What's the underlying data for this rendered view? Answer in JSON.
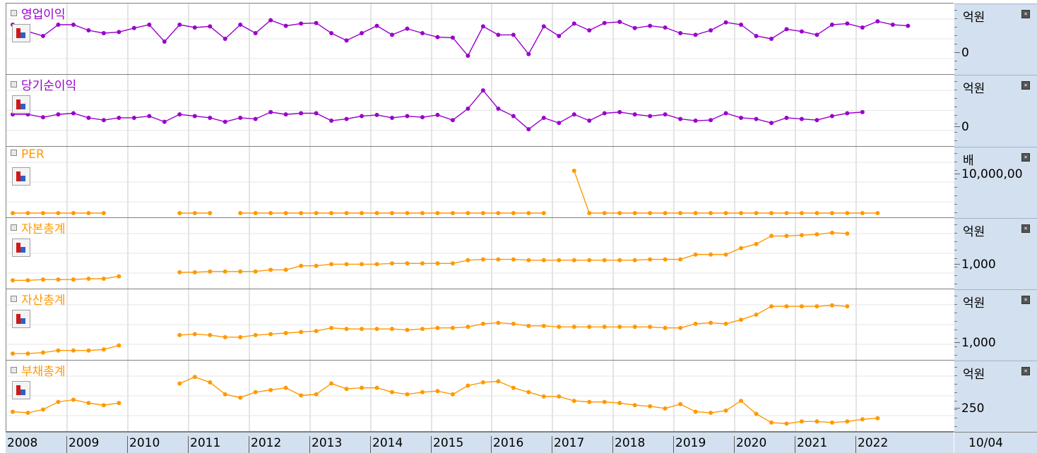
{
  "x_axis_labels": [
    "2008",
    "2009",
    "2010",
    "2011",
    "2012",
    "2013",
    "2014",
    "2015",
    "2016",
    "2017",
    "2018",
    "2019",
    "2020",
    "2021",
    "2022"
  ],
  "corner_label": "10/04",
  "colors": {
    "purple": "#9900cc",
    "orange": "#ff9900",
    "grid": "#c8c8c8",
    "axis_bg": "#d3e0ef"
  },
  "panels": [
    {
      "title": "영업이익",
      "unit": "억원",
      "ytick": "0",
      "color": "#9900cc"
    },
    {
      "title": "당기순이익",
      "unit": "억원",
      "ytick": "0",
      "color": "#9900cc"
    },
    {
      "title": "PER",
      "unit": "배",
      "ytick": "10,000,00",
      "color": "#ff9900"
    },
    {
      "title": "자본총계",
      "unit": "억원",
      "ytick": "1,000",
      "color": "#ff9900"
    },
    {
      "title": "자산총계",
      "unit": "억원",
      "ytick": "1,000",
      "color": "#ff9900"
    },
    {
      "title": "부채총계",
      "unit": "억원",
      "ytick": "250",
      "color": "#ff9900"
    }
  ],
  "chart_data": [
    {
      "type": "line",
      "title": "영업이익",
      "x_start": "2008 Q1",
      "frequency": "quarterly",
      "ylabel": "억원",
      "series": [
        {
          "name": "영업이익",
          "values": [
            60,
            48,
            40,
            60,
            60,
            50,
            45,
            47,
            54,
            60,
            30,
            60,
            55,
            57,
            35,
            60,
            45,
            68,
            58,
            62,
            63,
            45,
            32,
            45,
            58,
            42,
            53,
            45,
            38,
            37,
            5,
            57,
            42,
            42,
            8,
            57,
            40,
            62,
            50,
            63,
            65,
            54,
            58,
            55,
            45,
            42,
            50,
            64,
            60,
            40,
            35,
            52,
            48,
            42,
            60,
            62,
            55,
            66,
            60,
            58
          ]
        }
      ],
      "ylim": [
        -20,
        80
      ],
      "yticks": [
        0
      ]
    },
    {
      "type": "line",
      "title": "당기순이익",
      "x_start": "2008 Q1",
      "frequency": "quarterly",
      "ylabel": "억원",
      "series": [
        {
          "name": "당기순이익",
          "values": [
            28,
            28,
            23,
            28,
            30,
            22,
            18,
            22,
            22,
            25,
            15,
            28,
            25,
            22,
            15,
            22,
            20,
            32,
            28,
            30,
            30,
            17,
            20,
            25,
            27,
            22,
            25,
            23,
            27,
            18,
            38,
            70,
            38,
            25,
            2,
            22,
            13,
            28,
            17,
            30,
            32,
            28,
            25,
            28,
            20,
            17,
            18,
            30,
            22,
            20,
            13,
            22,
            20,
            18,
            25,
            30,
            32
          ]
        }
      ],
      "ylim": [
        -20,
        80
      ],
      "yticks": [
        0
      ]
    },
    {
      "type": "line",
      "title": "PER",
      "x_start": "2008 Q1",
      "frequency": "quarterly",
      "ylabel": "배",
      "series": [
        {
          "name": "PER",
          "values": [
            0,
            0,
            0,
            0,
            0,
            0,
            0,
            null,
            null,
            null,
            null,
            0,
            0,
            0,
            null,
            0,
            0,
            0,
            0,
            0,
            0,
            0,
            0,
            0,
            0,
            0,
            0,
            0,
            0,
            0,
            0,
            0,
            0,
            0,
            0,
            0,
            null,
            15000,
            0,
            0,
            0,
            0,
            0,
            0,
            0,
            0,
            0,
            0,
            0,
            0,
            0,
            0,
            0,
            0,
            0,
            0,
            0,
            0
          ]
        }
      ],
      "ylim": [
        0,
        20000
      ],
      "yticks": [
        10000
      ]
    },
    {
      "type": "line",
      "title": "자본총계",
      "x_start": "2008 Q1",
      "frequency": "quarterly",
      "ylabel": "억원",
      "series": [
        {
          "name": "자본총계",
          "values": [
            200,
            200,
            210,
            210,
            210,
            220,
            220,
            250,
            null,
            null,
            null,
            300,
            300,
            310,
            310,
            310,
            310,
            330,
            330,
            380,
            380,
            400,
            400,
            400,
            400,
            410,
            410,
            410,
            410,
            410,
            450,
            460,
            460,
            460,
            450,
            450,
            450,
            450,
            450,
            450,
            450,
            450,
            460,
            460,
            460,
            520,
            520,
            520,
            600,
            650,
            750,
            750,
            760,
            770,
            790,
            780
          ]
        }
      ],
      "ylim": [
        150,
        850
      ],
      "yticks": [
        1000
      ]
    },
    {
      "type": "line",
      "title": "자산총계",
      "x_start": "2008 Q1",
      "frequency": "quarterly",
      "ylabel": "억원",
      "series": [
        {
          "name": "자산총계",
          "values": [
            320,
            320,
            330,
            350,
            350,
            350,
            360,
            400,
            null,
            null,
            null,
            500,
            510,
            500,
            480,
            480,
            500,
            510,
            520,
            530,
            540,
            570,
            560,
            560,
            560,
            560,
            550,
            560,
            570,
            570,
            580,
            610,
            620,
            610,
            590,
            590,
            580,
            580,
            580,
            580,
            580,
            580,
            580,
            570,
            570,
            610,
            620,
            610,
            650,
            700,
            780,
            780,
            780,
            780,
            790,
            780
          ]
        }
      ],
      "ylim": [
        300,
        850
      ],
      "yticks": [
        1000
      ]
    },
    {
      "type": "line",
      "title": "부채총계",
      "x_start": "2008 Q1",
      "frequency": "quarterly",
      "ylabel": "억원",
      "series": [
        {
          "name": "부채총계",
          "values": [
            330,
            325,
            340,
            375,
            385,
            370,
            360,
            370,
            null,
            null,
            null,
            460,
            490,
            465,
            410,
            395,
            420,
            430,
            440,
            405,
            410,
            460,
            435,
            440,
            440,
            420,
            410,
            420,
            425,
            410,
            450,
            465,
            470,
            440,
            420,
            400,
            400,
            380,
            375,
            375,
            370,
            360,
            355,
            345,
            365,
            330,
            325,
            335,
            380,
            320,
            280,
            275,
            285,
            285,
            280,
            285,
            295,
            300
          ]
        }
      ],
      "ylim": [
        260,
        520
      ],
      "yticks": [
        250
      ]
    }
  ]
}
